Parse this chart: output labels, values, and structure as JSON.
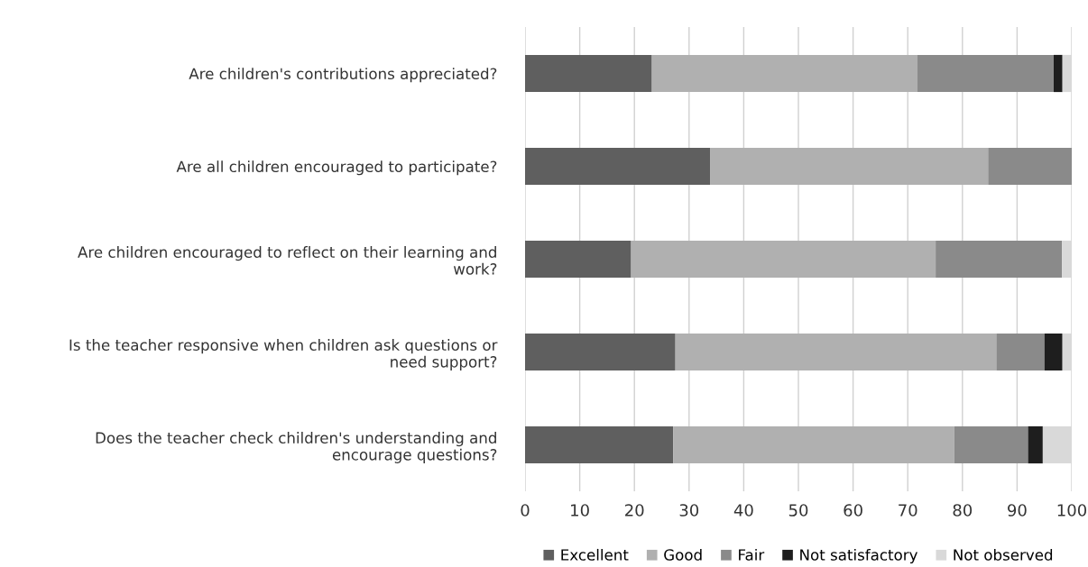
{
  "chart_data": {
    "type": "bar",
    "orientation": "horizontal",
    "stacked": true,
    "categories": [
      "Are children's contributions appreciated?",
      "Are all children encouraged to participate?",
      "Are children encouraged to reflect on their learning and\nwork?",
      "Is the teacher responsive when children ask questions or\nneed support?",
      "Does the teacher check children's understanding and\nencourage questions?"
    ],
    "series": [
      {
        "name": "Excellent",
        "color": "#5f5f5f",
        "values": [
          23.2,
          33.9,
          19.4,
          27.5,
          27.1
        ]
      },
      {
        "name": "Good",
        "color": "#b0b0b0",
        "values": [
          48.5,
          50.8,
          55.7,
          58.7,
          51.4
        ]
      },
      {
        "name": "Fair",
        "color": "#8a8a8a",
        "values": [
          25.0,
          15.3,
          23.1,
          8.8,
          13.5
        ]
      },
      {
        "name": "Not satisfactory",
        "color": "#1e1e1e",
        "values": [
          1.6,
          0,
          0,
          3.3,
          2.7
        ]
      },
      {
        "name": "Not observed",
        "color": "#d9d9d9",
        "values": [
          1.7,
          0,
          1.8,
          1.7,
          5.3
        ]
      }
    ],
    "xlim": [
      0,
      100
    ],
    "xticks": [
      0,
      10,
      20,
      30,
      40,
      50,
      60,
      70,
      80,
      90,
      100
    ],
    "grid": "x",
    "legend": "bottom"
  }
}
